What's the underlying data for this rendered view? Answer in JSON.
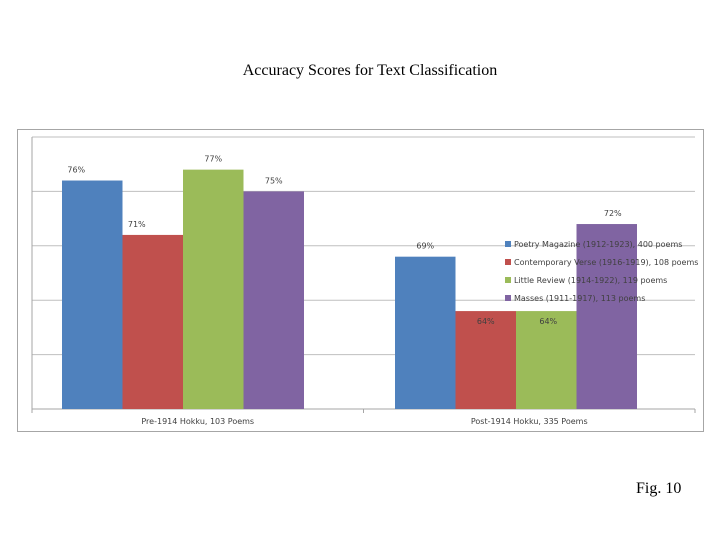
{
  "title": "Accuracy Scores for Text Classification",
  "figure_label": "Fig. 10",
  "chart_data": {
    "type": "bar",
    "title": "",
    "xlabel": "",
    "ylabel": "",
    "ylim": [
      55,
      80
    ],
    "grid": true,
    "y_tick_labels_shown": false,
    "legend_position": "right",
    "categories": [
      "Pre-1914 Hokku, 103 Poems",
      "Post-1914 Hokku, 335 Poems"
    ],
    "series": [
      {
        "name": "Poetry Magazine (1912-1923), 400 poems",
        "color": "#4f81bd",
        "values": [
          76,
          69
        ],
        "labels": [
          "76%",
          "69%"
        ]
      },
      {
        "name": "Contemporary Verse (1916-1919), 108 poems",
        "color": "#c0504d",
        "values": [
          71,
          64
        ],
        "labels": [
          "71%",
          "64%"
        ]
      },
      {
        "name": "Little Review (1914-1922), 119 poems",
        "color": "#9bbb59",
        "values": [
          77,
          64
        ],
        "labels": [
          "77%",
          "64%"
        ]
      },
      {
        "name": "Masses (1911-1917), 113 poems",
        "color": "#8064a2",
        "values": [
          75,
          72
        ],
        "labels": [
          "75%",
          "72%"
        ]
      }
    ]
  }
}
